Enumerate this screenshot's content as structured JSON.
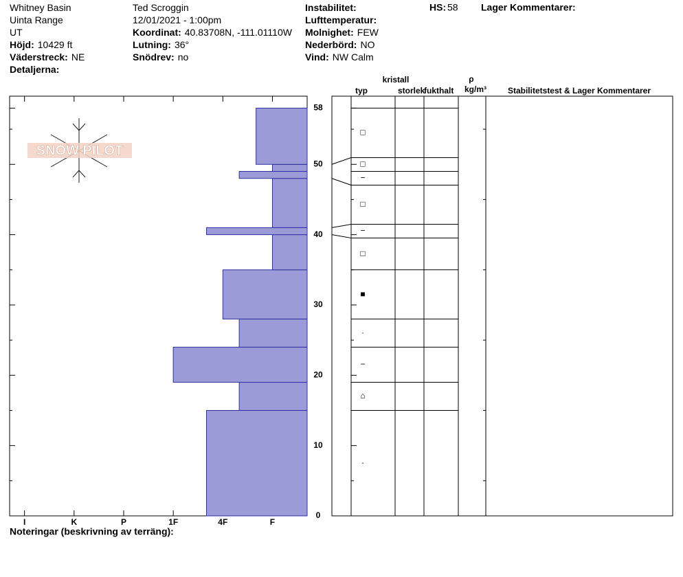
{
  "header": {
    "col1": [
      {
        "value": "Whitney Basin"
      },
      {
        "value": "Uinta Range"
      },
      {
        "value": "UT"
      },
      {
        "label": "Höjd:",
        "value": "10429 ft"
      },
      {
        "label": "Väderstreck:",
        "value": "NE"
      },
      {
        "label": "Detaljerna:"
      }
    ],
    "col2": [
      {
        "value": "Ted Scroggin"
      },
      {
        "value": "12/01/2021 - 1:00pm"
      },
      {
        "label": "Koordinat:",
        "value": "40.83708N, -111.01110W"
      },
      {
        "label": "Lutning:",
        "value": "36°"
      },
      {
        "label": "Snödrev:",
        "value": "no"
      }
    ],
    "col3": [
      {
        "label": "Instabilitet:"
      },
      {
        "label": "Lufttemperatur:"
      },
      {
        "label": "Molnighet:",
        "value": "FEW"
      },
      {
        "label": "Nederbörd:",
        "value": "NO"
      },
      {
        "label": "Vind:",
        "value": "NW Calm"
      }
    ],
    "hs_label": "HS:",
    "hs_value": "58",
    "layer_comments": "Lager Kommentarer:"
  },
  "logo": "SNOW PILOT",
  "notes": "Noteringar (beskrivning av terräng):",
  "table_headers": {
    "type": "typ",
    "crystal": "kristall",
    "size": "storlek",
    "moisture": "fukthalt",
    "rho": "ρ",
    "density_unit": "kg/m³",
    "comments": "Stabilitetstest & Lager Kommentarer"
  },
  "chart_data": {
    "type": "snowpit",
    "color": "#9b9bd7",
    "ylim": [
      0,
      59.7
    ],
    "yticks": [
      0,
      10,
      20,
      30,
      40,
      50,
      58
    ],
    "yticks_minor": [
      5,
      15,
      25,
      35,
      45,
      55
    ],
    "xlim": [
      6.3,
      0.3
    ],
    "xticks": [
      {
        "value": 6,
        "label": "I"
      },
      {
        "value": 5,
        "label": "K"
      },
      {
        "value": 4,
        "label": "P"
      },
      {
        "value": 3,
        "label": "1F"
      },
      {
        "value": 2,
        "label": "4F"
      },
      {
        "value": 1,
        "label": "F"
      }
    ],
    "layers": [
      {
        "bottom": 0,
        "top": 15,
        "hardness": 2.33,
        "grain": "·"
      },
      {
        "bottom": 15,
        "top": 19,
        "hardness": 1.67,
        "grain": "⌂"
      },
      {
        "bottom": 19,
        "top": 24,
        "hardness": 3,
        "grain": "−"
      },
      {
        "bottom": 24,
        "top": 28,
        "hardness": 1.67,
        "grain": "·"
      },
      {
        "bottom": 28,
        "top": 35,
        "hardness": 2,
        "grain": "■"
      },
      {
        "bottom": 35,
        "top": 40,
        "hardness": 1,
        "grain": "□"
      },
      {
        "bottom": 40,
        "top": 41,
        "hardness": 2.33,
        "grain": "−"
      },
      {
        "bottom": 41,
        "top": 48,
        "hardness": 1,
        "grain": "□"
      },
      {
        "bottom": 48,
        "top": 49,
        "hardness": 1.67,
        "grain": "−"
      },
      {
        "bottom": 49,
        "top": 50,
        "hardness": 1,
        "grain": "□"
      },
      {
        "bottom": 50,
        "top": 58,
        "hardness": 1.33,
        "grain": "□"
      }
    ]
  }
}
